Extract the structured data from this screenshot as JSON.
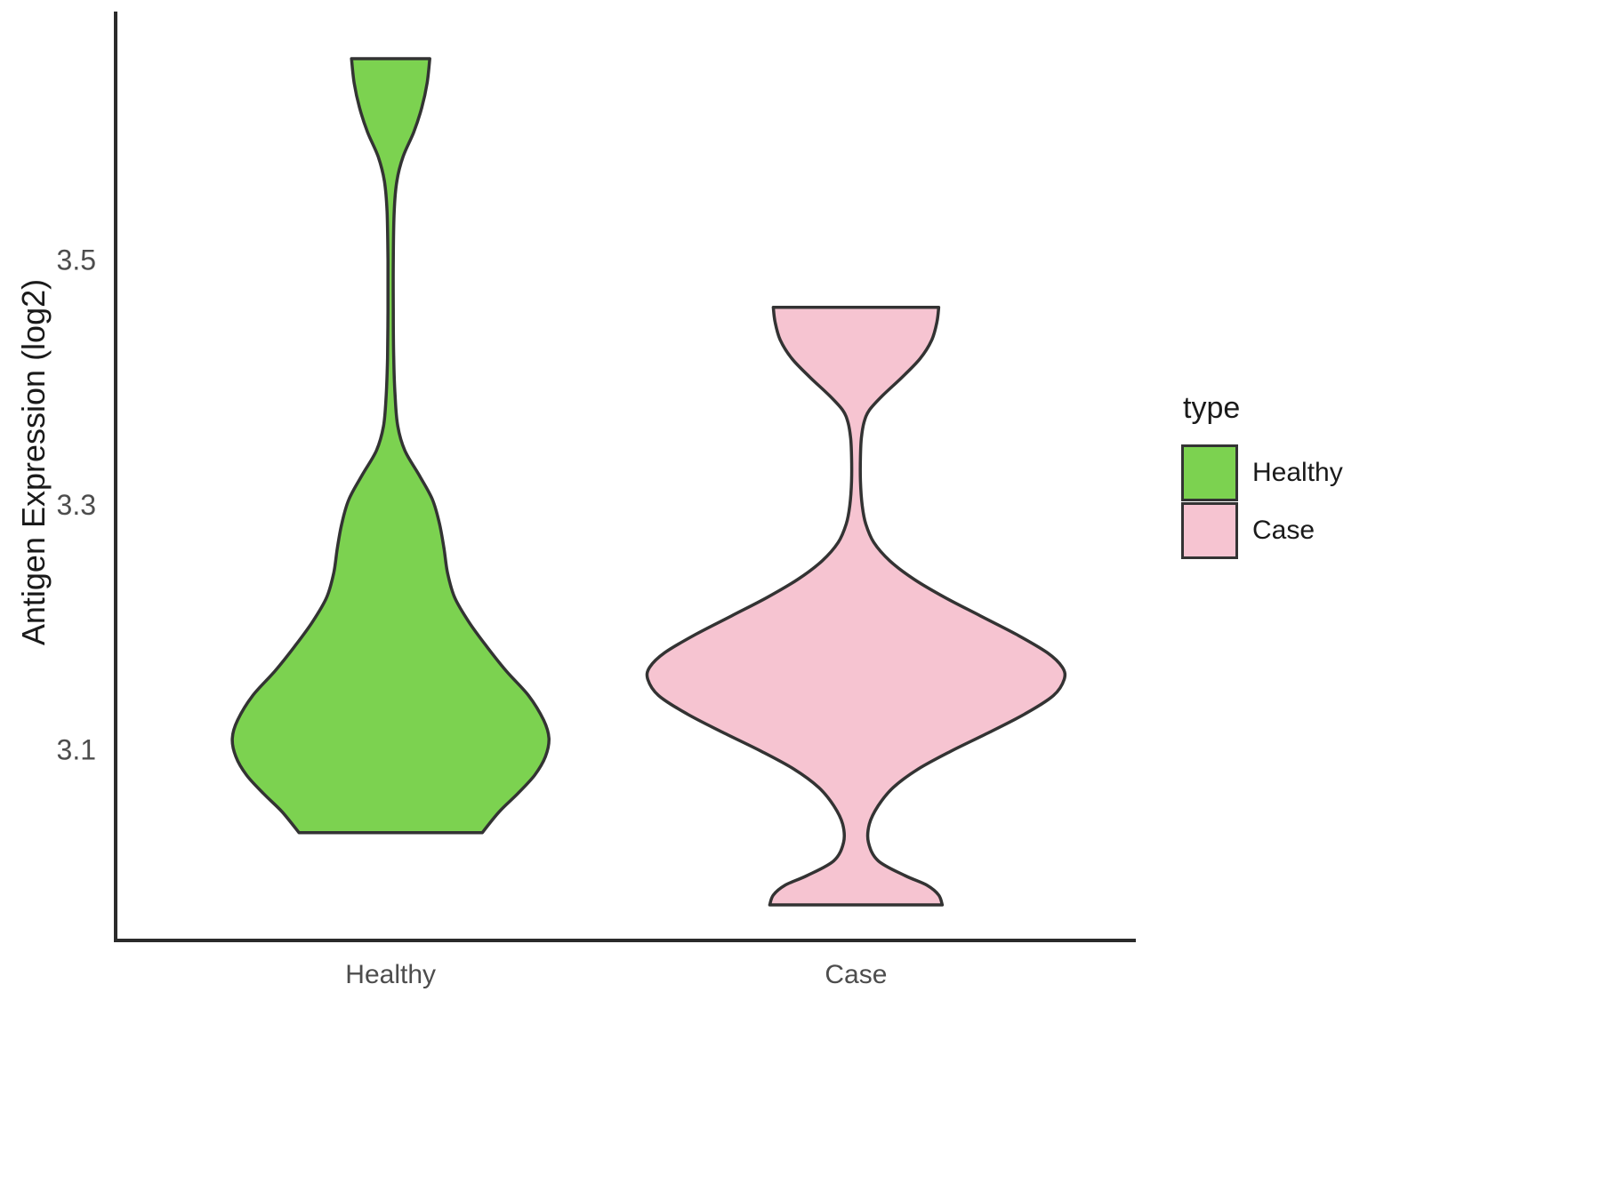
{
  "chart_data": {
    "type": "violin",
    "title": "",
    "xlabel": "",
    "ylabel": "Antigen Expression (log2)",
    "categories": [
      "Healthy",
      "Case"
    ],
    "yticks": [
      3.1,
      3.3,
      3.5
    ],
    "ylim": [
      2.945,
      3.702
    ],
    "grid": false,
    "axis_color": "#2b2b2b",
    "tick_label_color": "#4d4d4d",
    "legend": {
      "title": "type",
      "position": "right",
      "entries": [
        {
          "label": "Healthy",
          "color": "#7CD250"
        },
        {
          "label": "Case",
          "color": "#F6C4D1"
        }
      ]
    },
    "series": [
      {
        "name": "Healthy",
        "fill": "#7CD250",
        "stroke": "#333333",
        "center_frac": 0.27,
        "profile": [
          [
            3.665,
            44
          ],
          [
            3.645,
            41
          ],
          [
            3.625,
            35
          ],
          [
            3.605,
            26
          ],
          [
            3.585,
            14
          ],
          [
            3.565,
            7
          ],
          [
            3.54,
            4
          ],
          [
            3.5,
            3
          ],
          [
            3.46,
            3
          ],
          [
            3.42,
            3.5
          ],
          [
            3.39,
            5
          ],
          [
            3.365,
            8
          ],
          [
            3.345,
            16
          ],
          [
            3.325,
            32
          ],
          [
            3.305,
            47
          ],
          [
            3.285,
            55
          ],
          [
            3.265,
            60
          ],
          [
            3.245,
            64
          ],
          [
            3.225,
            72
          ],
          [
            3.205,
            88
          ],
          [
            3.185,
            108
          ],
          [
            3.165,
            130
          ],
          [
            3.145,
            155
          ],
          [
            3.125,
            172
          ],
          [
            3.11,
            178
          ],
          [
            3.095,
            174
          ],
          [
            3.08,
            162
          ],
          [
            3.065,
            143
          ],
          [
            3.05,
            122
          ],
          [
            3.033,
            103
          ]
        ]
      },
      {
        "name": "Case",
        "fill": "#F6C4D1",
        "stroke": "#333333",
        "center_frac": 0.727,
        "profile": [
          [
            3.462,
            93
          ],
          [
            3.45,
            91
          ],
          [
            3.435,
            85
          ],
          [
            3.42,
            72
          ],
          [
            3.405,
            52
          ],
          [
            3.39,
            30
          ],
          [
            3.378,
            15
          ],
          [
            3.368,
            9
          ],
          [
            3.355,
            6
          ],
          [
            3.34,
            5
          ],
          [
            3.32,
            5
          ],
          [
            3.3,
            7
          ],
          [
            3.285,
            11
          ],
          [
            3.27,
            20
          ],
          [
            3.255,
            38
          ],
          [
            3.24,
            65
          ],
          [
            3.225,
            100
          ],
          [
            3.21,
            140
          ],
          [
            3.195,
            180
          ],
          [
            3.18,
            215
          ],
          [
            3.168,
            232
          ],
          [
            3.158,
            234
          ],
          [
            3.145,
            222
          ],
          [
            3.13,
            190
          ],
          [
            3.115,
            150
          ],
          [
            3.1,
            108
          ],
          [
            3.085,
            70
          ],
          [
            3.07,
            42
          ],
          [
            3.055,
            25
          ],
          [
            3.04,
            15
          ],
          [
            3.025,
            14
          ],
          [
            3.01,
            25
          ],
          [
            2.998,
            55
          ],
          [
            2.99,
            80
          ],
          [
            2.982,
            93
          ],
          [
            2.974,
            97
          ]
        ]
      }
    ]
  }
}
